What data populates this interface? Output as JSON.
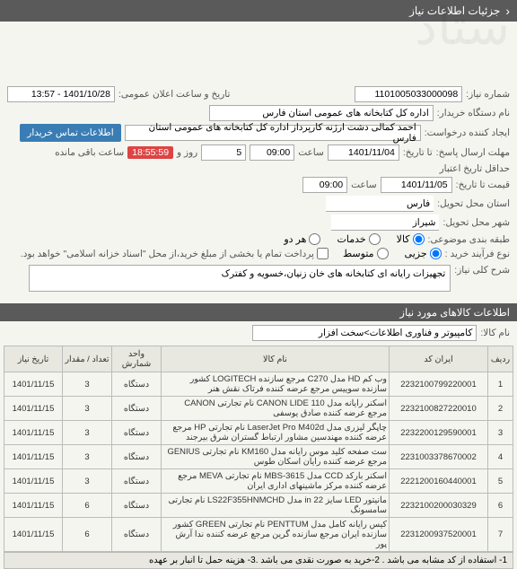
{
  "header": {
    "title": "جزئیات اطلاعات نیاز",
    "arrow": "‹"
  },
  "fields": {
    "need_no_label": "شماره نیاز:",
    "need_no": "1101005033000098",
    "announce_label": "تاریخ و ساعت اعلان عمومی:",
    "announce": "1401/10/28 - 13:57",
    "buyer_label": "نام دستگاه خریدار:",
    "buyer": "اداره کل کتابخانه های عمومی استان فارس",
    "creator_label": "ایجاد کننده درخواست:",
    "creator": "احمد  کمالی دشت ارژنه  کارپرداز اداره کل کتابخانه های عمومی استان فارس",
    "btn_contact": "اطلاعات تماس خریدار",
    "deadline_resp_label": "مهلت ارسال پاسخ:",
    "deadline_resp_suffix": "تا تاریخ:",
    "deadline_resp_date": "1401/11/04",
    "time_label": "ساعت",
    "deadline_resp_time": "09:00",
    "days": "5",
    "days_label": "روز و",
    "countdown": "18:55:59",
    "remain_label": "ساعت باقی مانده",
    "validity_label": "حداقل تاریخ اعتبار",
    "validity_suffix": "قیمت تا تاریخ:",
    "validity_date": "1401/11/05",
    "validity_time": "09:00",
    "submit_prov_label": "استان محل تحویل:",
    "submit_prov": "فارس",
    "submit_city_label": "شهر محل تحویل:",
    "submit_city": "شیراز",
    "category_label": "طبقه بندی موضوعی:",
    "cat_kala": "کالا",
    "cat_khadamat": "خدمات",
    "cat_both": "هر دو",
    "buy_process_label": "نوع فرآیند خرید :",
    "buy_low": "جزیی",
    "buy_mid": "متوسط",
    "buy_note": "پرداخت تمام یا بخشی از مبلغ خرید،از محل \"اسناد خزانه اسلامی\" خواهد بود.",
    "desc_label": "شرح کلی نیاز:",
    "desc": "تجهیزات رایانه ای کتابخانه های خان زنیان،خسویه و کفترک"
  },
  "section2": "اطلاعات کالاهای مورد نیاز",
  "goods_label": "نام کالا:",
  "goods_name": "کامپیوتر و فناوری اطلاعات>سخت افزار",
  "table": {
    "headers": [
      "ردیف",
      "ایران کد",
      "نام کالا",
      "واحد شمارش",
      "تعداد / مقدار",
      "تاریخ نیاز"
    ],
    "rows": [
      [
        "1",
        "2232100799220001",
        "وب کم HD مدل C270 مرجع سازنده LOGITECH کشور سازنده سوییس مرجع عرضه کننده فرتاک نقش هنر",
        "دستگاه",
        "3",
        "1401/11/15"
      ],
      [
        "2",
        "2232100827220010",
        "اسکنر رایانه مدل CANON LIDE 110 نام تجارتی CANON مرجع عرضه کننده صادق یوسفی",
        "دستگاه",
        "3",
        "1401/11/15"
      ],
      [
        "3",
        "2232200129590001",
        "چاپگر لیزری مدل LaserJet Pro M402d نام تجارتی HP مرجع عرضه کننده مهندسین مشاور ارتباط گستران شرق بیرجند",
        "دستگاه",
        "3",
        "1401/11/15"
      ],
      [
        "4",
        "2231003378670002",
        "ست صفحه کلید موس رایانه مدل KM160 نام تجارتی GENIUS مرجع عرضه کننده رایان اسکان طوس",
        "دستگاه",
        "3",
        "1401/11/15"
      ],
      [
        "5",
        "2221200160440001",
        "اسکنر بارکد CCD مدل MBS-3615 نام تجارتی MEVA مرجع عرضه کننده مرکز ماشینهای اداری ایران",
        "دستگاه",
        "3",
        "1401/11/15"
      ],
      [
        "6",
        "2232100200030329",
        "مانیتور LED سایز 22 in مدل LS22F355HNMCHD نام تجارتی سامسونگ",
        "دستگاه",
        "6",
        "1401/11/15"
      ],
      [
        "7",
        "2231200937520001",
        "کیس رایانه کامل مدل PENTTUM نام تجارتی GREEN کشور سازنده ایران مرجع سازنده گرین مرجع عرضه کننده ندا آرش پور",
        "دستگاه",
        "6",
        "1401/11/15"
      ]
    ]
  },
  "note": "1- استفاده از کد مشابه می باشد . 2-خرید به صورت نقدی می باشد .3- هزینه حمل تا انبار بر عهده"
}
